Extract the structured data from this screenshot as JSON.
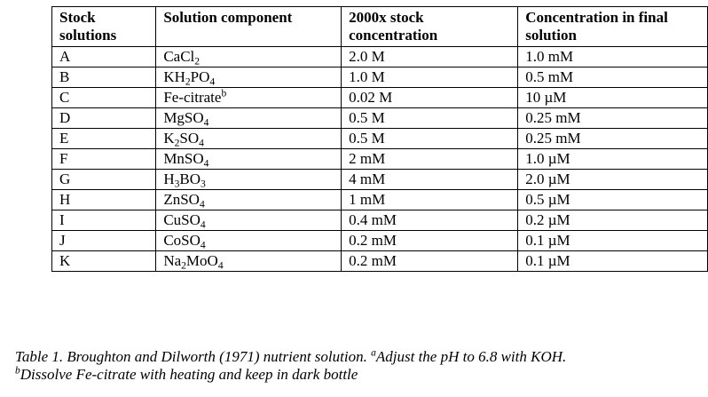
{
  "table": {
    "headers": [
      "Stock solutions",
      "Solution component",
      "2000x stock concentration",
      "Concentration in final solution"
    ],
    "rows": [
      {
        "stock": "A",
        "component": [
          {
            "t": "CaCl"
          },
          {
            "t": "2",
            "s": "sub"
          }
        ],
        "stock_conc": "2.0 M",
        "final_conc": "1.0 mM"
      },
      {
        "stock": "B",
        "component": [
          {
            "t": "KH"
          },
          {
            "t": "2",
            "s": "sub"
          },
          {
            "t": "PO"
          },
          {
            "t": "4",
            "s": "sub"
          }
        ],
        "stock_conc": "1.0 M",
        "final_conc": "0.5 mM"
      },
      {
        "stock": "C",
        "component": [
          {
            "t": "Fe-citrate"
          },
          {
            "t": "b",
            "s": "sup"
          }
        ],
        "stock_conc": "0.02 M",
        "final_conc": "10 µM"
      },
      {
        "stock": "D",
        "component": [
          {
            "t": "MgSO"
          },
          {
            "t": "4",
            "s": "sub"
          }
        ],
        "stock_conc": "0.5 M",
        "final_conc": "0.25 mM"
      },
      {
        "stock": "E",
        "component": [
          {
            "t": "K"
          },
          {
            "t": "2",
            "s": "sub"
          },
          {
            "t": "SO"
          },
          {
            "t": "4",
            "s": "sub"
          }
        ],
        "stock_conc": "0.5 M",
        "final_conc": "0.25 mM"
      },
      {
        "stock": "F",
        "component": [
          {
            "t": "MnSO"
          },
          {
            "t": "4",
            "s": "sub"
          }
        ],
        "stock_conc": "2 mM",
        "final_conc": "1.0 µM"
      },
      {
        "stock": "G",
        "component": [
          {
            "t": "H"
          },
          {
            "t": "3",
            "s": "sub"
          },
          {
            "t": "BO"
          },
          {
            "t": "3",
            "s": "sub"
          }
        ],
        "stock_conc": "4 mM",
        "final_conc": "2.0 µM"
      },
      {
        "stock": "H",
        "component": [
          {
            "t": "ZnSO"
          },
          {
            "t": "4",
            "s": "sub"
          }
        ],
        "stock_conc": "1 mM",
        "final_conc": "0.5 µM"
      },
      {
        "stock": "I",
        "component": [
          {
            "t": "CuSO"
          },
          {
            "t": "4",
            "s": "sub"
          }
        ],
        "stock_conc": "0.4 mM",
        "final_conc": "0.2 µM"
      },
      {
        "stock": "J",
        "component": [
          {
            "t": "CoSO"
          },
          {
            "t": "4",
            "s": "sub"
          }
        ],
        "stock_conc": "0.2 mM",
        "final_conc": "0.1 µM"
      },
      {
        "stock": "K",
        "component": [
          {
            "t": "Na"
          },
          {
            "t": "2",
            "s": "sub"
          },
          {
            "t": "MoO"
          },
          {
            "t": "4",
            "s": "sub"
          }
        ],
        "stock_conc": "0.2 mM",
        "final_conc": "0.1 µM"
      }
    ]
  },
  "caption": {
    "line1": [
      {
        "t": "Table 1. Broughton and Dilworth (1971) nutrient solution. "
      },
      {
        "t": "a",
        "s": "sup"
      },
      {
        "t": "Adjust the pH to 6.8 with KOH."
      }
    ],
    "line2": [
      {
        "t": "b",
        "s": "sup"
      },
      {
        "t": "Dissolve Fe-citrate with heating and keep in dark bottle"
      }
    ]
  }
}
